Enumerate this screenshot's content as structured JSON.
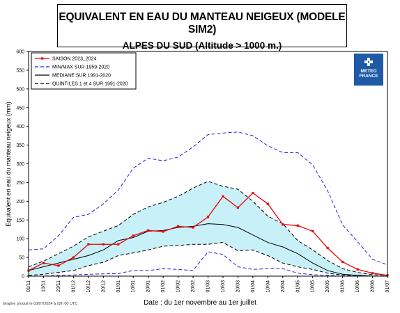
{
  "title": "EQUIVALENT EN EAU DU MANTEAU NEIGEUX (MODELE SIM2)",
  "subtitle": "ALPES DU SUD (Altitude > 1000 m.)",
  "footer": "Graphe produit le 03/07/2024 à 02h 00 UTC",
  "logo": {
    "line1": "METEO",
    "line2": "FRANCE",
    "color": "#1f5aa6"
  },
  "chart_data": {
    "type": "line",
    "xlabel": "Date : du 1er novembre au 1er juillet",
    "ylabel": "Equivalent en eau du manteau neigeux (mm)",
    "ylim": [
      0,
      600
    ],
    "yticks": [
      0,
      50,
      100,
      150,
      200,
      250,
      300,
      350,
      400,
      450,
      500,
      550,
      600
    ],
    "categories": [
      "01/11",
      "10/11",
      "20/11",
      "01/12",
      "10/12",
      "20/12",
      "01/01",
      "10/01",
      "20/01",
      "01/02",
      "10/02",
      "20/02",
      "01/03",
      "10/03",
      "20/03",
      "01/04",
      "10/04",
      "20/04",
      "01/05",
      "10/05",
      "20/05",
      "01/06",
      "10/06",
      "20/06",
      "01/07"
    ],
    "legend_position": "top-left",
    "colors": {
      "red": "#ee0000",
      "blue": "#2222dd",
      "fill": "#c8f0f8"
    },
    "series": [
      {
        "name": "SAISON 2023_2024",
        "style": "red-markers",
        "values": [
          15,
          35,
          28,
          50,
          85,
          85,
          85,
          108,
          122,
          119,
          133,
          130,
          158,
          213,
          183,
          222,
          193,
          138,
          135,
          120,
          75,
          38,
          18,
          8,
          2
        ]
      },
      {
        "name": "MIN/MAX SUR 1959-2020",
        "style": "blue-dashed",
        "role": "max",
        "values": [
          70,
          73,
          108,
          157,
          165,
          193,
          230,
          288,
          315,
          308,
          318,
          345,
          378,
          382,
          385,
          375,
          348,
          330,
          330,
          297,
          228,
          137,
          92,
          45,
          30
        ]
      },
      {
        "name": "MIN/MAX SUR 1959-2020",
        "style": "blue-dashed",
        "role": "min",
        "values": [
          0,
          0,
          2,
          3,
          5,
          6,
          7,
          15,
          15,
          20,
          18,
          15,
          65,
          58,
          25,
          18,
          20,
          20,
          8,
          4,
          2,
          0,
          0,
          0,
          0
        ]
      },
      {
        "name": "MEDIANE SUR 1991-2020",
        "style": "black-solid",
        "values": [
          15,
          25,
          35,
          45,
          55,
          70,
          95,
          103,
          120,
          122,
          130,
          133,
          140,
          138,
          130,
          110,
          90,
          78,
          60,
          35,
          15,
          5,
          2,
          0,
          0
        ]
      },
      {
        "name": "QUINTILES 1 et 4 SUR 1991-2020",
        "style": "black-dashed",
        "role": "q4",
        "values": [
          25,
          40,
          60,
          80,
          105,
          120,
          135,
          165,
          185,
          197,
          213,
          235,
          253,
          240,
          232,
          200,
          160,
          140,
          95,
          70,
          42,
          20,
          10,
          4,
          2
        ]
      },
      {
        "name": "QUINTILES 1 et 4 SUR 1991-2020",
        "style": "black-dashed",
        "role": "q1",
        "values": [
          2,
          5,
          10,
          15,
          28,
          37,
          55,
          62,
          70,
          80,
          82,
          85,
          85,
          90,
          68,
          70,
          55,
          35,
          25,
          18,
          8,
          3,
          1,
          0,
          0
        ]
      }
    ]
  }
}
